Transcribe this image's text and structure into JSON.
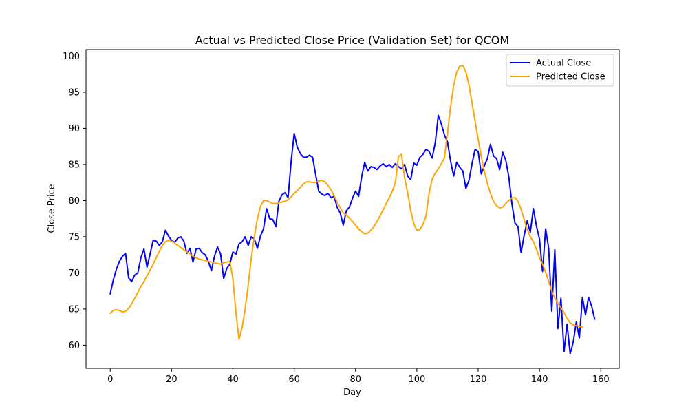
{
  "chart_data": {
    "type": "line",
    "title": "Actual vs Predicted Close Price (Validation Set) for QCOM",
    "xlabel": "Day",
    "ylabel": "Close Price",
    "xlim": [
      -7.9,
      166
    ],
    "ylim": [
      56.8,
      100.9
    ],
    "xticks": [
      0,
      20,
      40,
      60,
      80,
      100,
      120,
      140,
      160
    ],
    "yticks": [
      60,
      65,
      70,
      75,
      80,
      85,
      90,
      95,
      100
    ],
    "grid": false,
    "legend_position": "top-right",
    "series": [
      {
        "name": "Actual Close",
        "color": "#0000ff",
        "values": [
          67.1,
          69.0,
          70.5,
          71.6,
          72.3,
          72.7,
          69.3,
          68.8,
          69.7,
          70.0,
          72.1,
          73.3,
          70.8,
          72.6,
          74.5,
          74.4,
          73.8,
          74.3,
          75.9,
          75.1,
          74.5,
          74.2,
          74.8,
          75.0,
          74.4,
          72.7,
          73.4,
          71.5,
          73.3,
          73.4,
          72.8,
          72.5,
          71.6,
          70.3,
          72.3,
          73.6,
          72.6,
          69.2,
          70.6,
          71.2,
          72.9,
          72.6,
          74.0,
          74.3,
          75.0,
          73.8,
          75.0,
          74.7,
          73.4,
          75.1,
          76.1,
          78.9,
          77.5,
          77.4,
          76.4,
          79.9,
          80.8,
          81.1,
          80.4,
          85.4,
          89.3,
          87.4,
          86.5,
          86.0,
          86.0,
          86.3,
          86.0,
          83.6,
          81.3,
          80.9,
          80.7,
          81.0,
          80.4,
          80.6,
          79.1,
          78.3,
          76.6,
          78.6,
          79.1,
          80.3,
          81.3,
          80.6,
          83.3,
          85.3,
          84.1,
          84.7,
          84.6,
          84.3,
          84.8,
          85.1,
          84.7,
          85.0,
          84.6,
          85.1,
          84.7,
          84.4,
          85.0,
          83.4,
          82.9,
          85.2,
          84.9,
          86.0,
          86.4,
          87.1,
          86.8,
          85.9,
          88.0,
          91.8,
          90.6,
          89.1,
          88.1,
          85.5,
          83.4,
          85.3,
          84.6,
          84.1,
          81.7,
          82.8,
          85.1,
          87.1,
          86.8,
          83.7,
          84.8,
          85.8,
          87.8,
          86.2,
          85.8,
          84.3,
          86.7,
          85.6,
          83.3,
          79.6,
          76.9,
          76.4,
          72.8,
          75.2,
          77.2,
          75.6,
          78.9,
          76.5,
          74.7,
          70.2,
          76.1,
          73.4,
          64.7,
          73.2,
          62.3,
          66.5,
          59.1,
          62.9,
          58.8,
          60.4,
          63.2,
          61.0,
          66.6,
          64.2,
          66.6,
          65.4,
          63.6
        ]
      },
      {
        "name": "Predicted Close",
        "color": "#ffa500",
        "values": [
          64.4,
          64.8,
          64.9,
          64.8,
          64.6,
          64.7,
          65.1,
          65.7,
          66.5,
          67.3,
          68.1,
          68.8,
          69.6,
          70.4,
          71.2,
          72.1,
          73.0,
          73.8,
          74.3,
          74.5,
          74.4,
          74.1,
          73.8,
          73.5,
          73.2,
          72.9,
          72.6,
          72.3,
          72.1,
          71.9,
          71.8,
          71.7,
          71.6,
          71.5,
          71.4,
          71.3,
          71.2,
          71.4,
          71.5,
          71.6,
          69.2,
          64.5,
          60.8,
          62.4,
          65.0,
          68.3,
          72.0,
          75.0,
          77.5,
          79.2,
          80.0,
          80.0,
          79.8,
          79.6,
          79.6,
          79.7,
          79.8,
          79.9,
          80.1,
          80.5,
          81.0,
          81.4,
          81.8,
          82.3,
          82.6,
          82.6,
          82.5,
          82.5,
          82.7,
          82.8,
          82.6,
          82.1,
          81.5,
          80.7,
          79.8,
          79.0,
          78.3,
          78.0,
          77.6,
          77.1,
          76.6,
          76.1,
          75.7,
          75.4,
          75.5,
          75.9,
          76.4,
          77.1,
          77.9,
          78.7,
          79.6,
          80.4,
          81.3,
          82.5,
          86.1,
          86.4,
          83.2,
          81.1,
          78.6,
          76.8,
          75.9,
          76.0,
          76.7,
          77.9,
          81.0,
          83.0,
          83.8,
          84.4,
          85.1,
          85.9,
          89.4,
          93.0,
          95.9,
          97.8,
          98.6,
          98.7,
          97.8,
          96.0,
          93.5,
          91.0,
          88.5,
          86.1,
          84.1,
          82.4,
          81.0,
          79.9,
          79.3,
          79.0,
          79.1,
          79.6,
          80.0,
          80.4,
          80.4,
          79.9,
          78.8,
          77.4,
          76.0,
          75.0,
          74.3,
          73.3,
          72.1,
          71.2,
          70.1,
          68.8,
          67.5,
          66.5,
          65.8,
          65.2,
          64.5,
          63.7,
          63.1,
          62.8,
          62.7,
          62.6,
          62.5
        ]
      }
    ]
  }
}
